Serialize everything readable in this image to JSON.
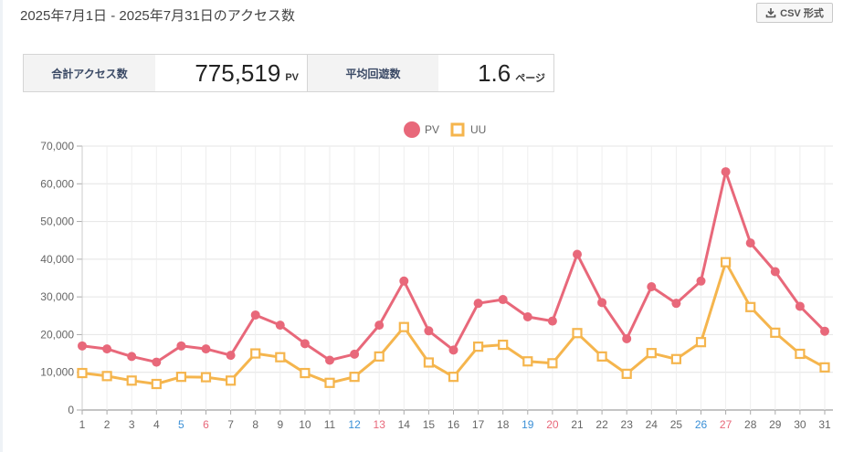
{
  "header": {
    "title": "2025年7月1日 - 2025年7月31日のアクセス数",
    "csv_label": "CSV 形式"
  },
  "summary": {
    "total_label": "合計アクセス数",
    "total_value": "775,519",
    "total_unit": "PV",
    "avg_label": "平均回遊数",
    "avg_value": "1.6",
    "avg_unit": "ページ"
  },
  "colors": {
    "pv": "#e8687a",
    "uu": "#f5b54d",
    "saturday": "#3a8fd6",
    "sunday": "#e8687a",
    "weekday": "#666666"
  },
  "icons": {
    "csv": "download-icon"
  },
  "chart_data": {
    "type": "line",
    "x": [
      1,
      2,
      3,
      4,
      5,
      6,
      7,
      8,
      9,
      10,
      11,
      12,
      13,
      14,
      15,
      16,
      17,
      18,
      19,
      20,
      21,
      22,
      23,
      24,
      25,
      26,
      27,
      28,
      29,
      30,
      31
    ],
    "x_tick_labels": [
      "1",
      "2",
      "3",
      "4",
      "5",
      "6",
      "7",
      "8",
      "9",
      "10",
      "11",
      "12",
      "13",
      "14",
      "15",
      "16",
      "17",
      "18",
      "19",
      "20",
      "21",
      "22",
      "23",
      "24",
      "25",
      "26",
      "27",
      "28",
      "29",
      "30",
      "31"
    ],
    "saturdays": [
      5,
      12,
      19,
      26
    ],
    "sundays": [
      6,
      13,
      20,
      27
    ],
    "y_tick_labels": [
      "0",
      "10,000",
      "20,000",
      "30,000",
      "40,000",
      "50,000",
      "60,000",
      "70,000"
    ],
    "ylim": [
      0,
      70000
    ],
    "grid": true,
    "legend_position": "top-center",
    "series": [
      {
        "name": "PV",
        "marker": "circle",
        "values": [
          17000,
          16200,
          14200,
          12700,
          17000,
          16200,
          14500,
          25200,
          22500,
          17600,
          13200,
          14800,
          22500,
          34200,
          21000,
          15900,
          28300,
          29300,
          24700,
          23600,
          41300,
          28500,
          18900,
          32700,
          28300,
          34200,
          63200,
          44300,
          36700,
          27500,
          20900
        ]
      },
      {
        "name": "UU",
        "marker": "square",
        "values": [
          9800,
          9000,
          7800,
          6900,
          8800,
          8700,
          7800,
          15000,
          14000,
          9800,
          7200,
          8800,
          14200,
          22000,
          12600,
          8800,
          16800,
          17300,
          12900,
          12400,
          20400,
          14200,
          9600,
          15100,
          13500,
          18000,
          39200,
          27300,
          20500,
          14900,
          11300
        ]
      }
    ]
  }
}
